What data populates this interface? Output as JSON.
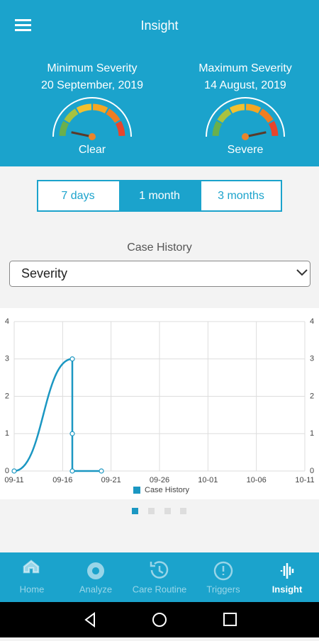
{
  "header": {
    "title": "Insight"
  },
  "summary": [
    {
      "label": "Minimum Severity",
      "date": "20 September, 2019",
      "level": "Clear"
    },
    {
      "label": "Maximum Severity",
      "date": "14 August, 2019",
      "level": "Severe"
    }
  ],
  "tabs": [
    "7 days",
    "1 month",
    "3 months"
  ],
  "selected_tab": 1,
  "section_title": "Case History",
  "dropdown": "Severity",
  "chart_data": {
    "type": "line",
    "x": [
      "09-11",
      "09-17",
      "09-17",
      "09-17",
      "09-20"
    ],
    "series": [
      {
        "name": "Case History",
        "color": "#1b97c2",
        "values": [
          0,
          3,
          1,
          0,
          0
        ]
      }
    ],
    "xlim": [
      "09-11",
      "10-11"
    ],
    "xticks": [
      "09-11",
      "09-16",
      "09-21",
      "09-26",
      "10-01",
      "10-06",
      "10-11"
    ],
    "ylim": [
      0,
      4
    ],
    "yticks": [
      0,
      1,
      2,
      3,
      4
    ],
    "y2lim": [
      0,
      4
    ],
    "y2ticks": [
      0,
      1,
      2,
      3,
      4
    ],
    "grid": true,
    "legend": "bottom"
  },
  "nav": [
    "Home",
    "Analyze",
    "Care Routine",
    "Triggers",
    "Insight"
  ],
  "selected_nav": 4
}
